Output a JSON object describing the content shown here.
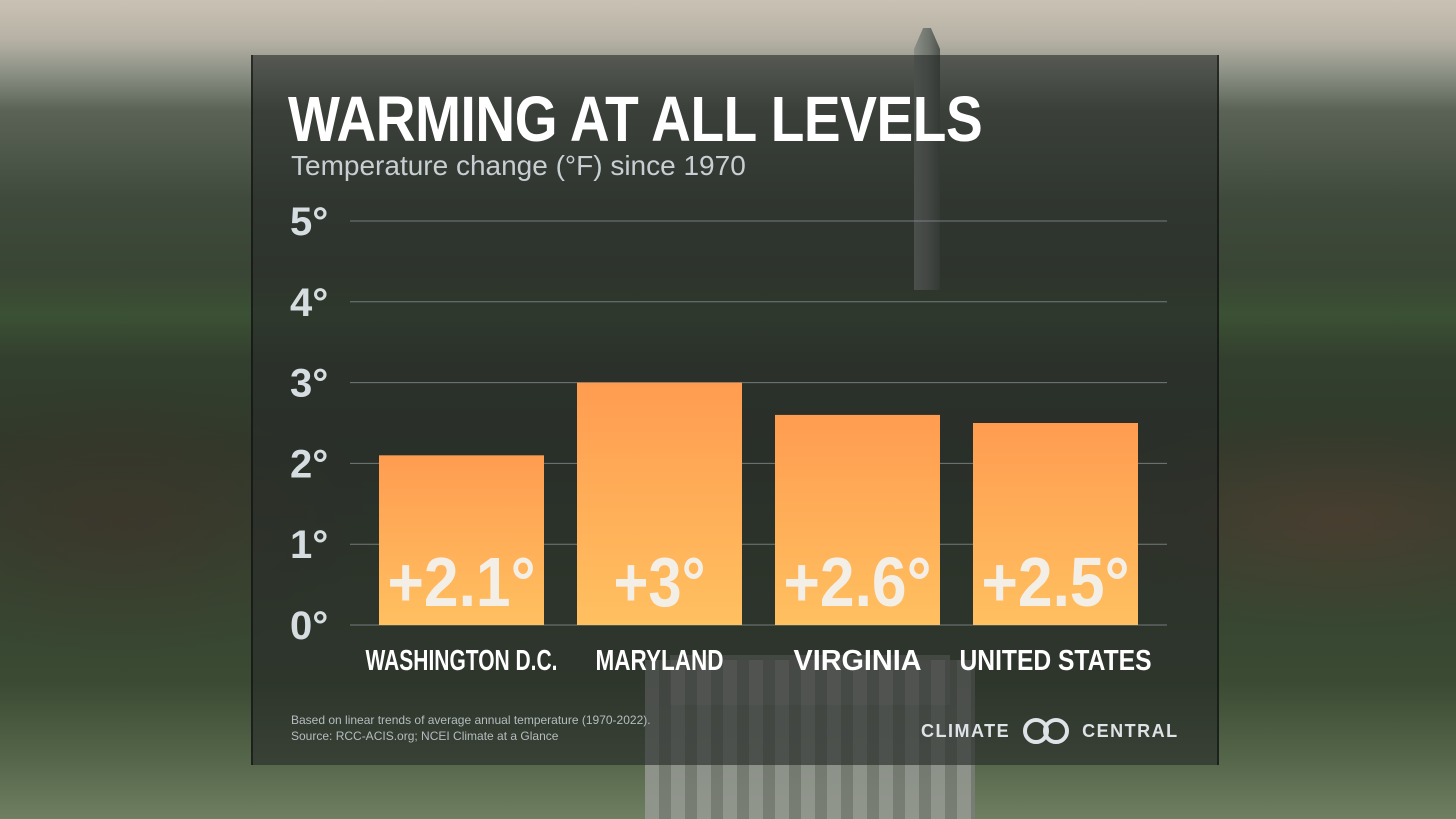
{
  "title": "WARMING AT ALL LEVELS",
  "subtitle": "Temperature change (°F) since 1970",
  "footnote": {
    "line1": "Based on linear trends of average annual temperature (1970-2022).",
    "line2": "Source: RCC-ACIS.org; NCEI Climate at a Glance"
  },
  "logo": {
    "left": "CLIMATE",
    "right": "CENTRAL",
    "icon": "climate-central-rings-icon"
  },
  "colors": {
    "bar_top": "#ff9c50",
    "bar_bottom": "#ffc060",
    "gridline": "#8a9296"
  },
  "chart_data": {
    "type": "bar",
    "categories": [
      "WASHINGTON D.C.",
      "MARYLAND",
      "VIRGINIA",
      "UNITED STATES"
    ],
    "values": [
      2.1,
      3,
      2.6,
      2.5
    ],
    "value_labels": [
      "+2.1°",
      "+3°",
      "+2.6°",
      "+2.5°"
    ],
    "title": "WARMING AT ALL LEVELS",
    "subtitle": "Temperature change (°F) since 1970",
    "ylim": [
      0,
      5
    ],
    "yticks": [
      0,
      1,
      2,
      3,
      4,
      5
    ],
    "ytick_labels": [
      "0°",
      "1°",
      "2°",
      "3°",
      "4°",
      "5°"
    ],
    "grid": true,
    "legend": "none"
  }
}
